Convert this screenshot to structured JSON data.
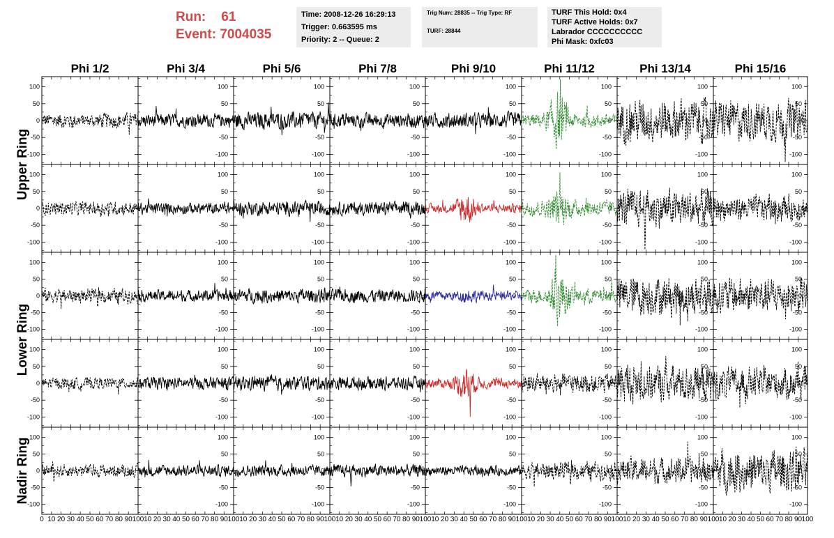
{
  "header": {
    "run_label": "Run:",
    "run_value": "61",
    "event_label": "Event:",
    "event_value": "7004035",
    "time_box": [
      "Time: 2008-12-26 16:29:13",
      "Trigger: 0.663595 ms",
      "Priority: 2 -- Queue: 2"
    ],
    "trig_box": [
      "Trig Num: 28835 -- Trig Type: RF",
      "TURF: 28844"
    ],
    "turf_box": [
      "TURF This Hold: 0x4",
      "TURF Active Holds: 0x7",
      "Labrador CCCCCCCCCC",
      "Phi Mask: 0xfc03"
    ],
    "run_color": "#d04a4a",
    "box_bg": "#ececec"
  },
  "chart_data": {
    "type": "line",
    "columns": [
      "Phi 1/2",
      "Phi 3/4",
      "Phi 5/6",
      "Phi 7/8",
      "Phi 9/10",
      "Phi 11/12",
      "Phi 13/14",
      "Phi 15/16"
    ],
    "rows": [
      "Upper Ring",
      "Lower Ring",
      "Nadir Ring"
    ],
    "xlim": [
      0,
      100
    ],
    "ylim": [
      -130,
      130
    ],
    "yticks": [
      -100,
      -50,
      0,
      50,
      100
    ],
    "xtick_labels": [
      "0",
      "10",
      "20",
      "30",
      "40",
      "50",
      "60",
      "70",
      "80",
      "90",
      "100"
    ],
    "colors": {
      "black": "#000000",
      "red": "#cc2a2a",
      "blue": "#2a2a9c",
      "green": "#2a8a2a"
    },
    "panels": [
      [
        {
          "color": "black",
          "dashed": true,
          "amp": 17,
          "burst": [
            45,
            0.8
          ]
        },
        {
          "color": "black",
          "dashed": false,
          "amp": 15
        },
        {
          "color": "black",
          "dashed": false,
          "amp": 19
        },
        {
          "color": "black",
          "dashed": false,
          "amp": 16
        },
        {
          "color": "black",
          "dashed": false,
          "amp": 17
        },
        {
          "color": "green",
          "dashed": true,
          "amp": 15,
          "burst": [
            38,
            4.5
          ]
        },
        {
          "color": "black",
          "dashed": true,
          "amp": 48
        },
        {
          "color": "black",
          "dashed": true,
          "amp": 45
        }
      ],
      [
        {
          "color": "black",
          "dashed": true,
          "amp": 15
        },
        {
          "color": "black",
          "dashed": false,
          "amp": 13
        },
        {
          "color": "black",
          "dashed": false,
          "amp": 16
        },
        {
          "color": "black",
          "dashed": false,
          "amp": 15
        },
        {
          "color": "red",
          "dashed": false,
          "amp": 10,
          "burst": [
            42,
            4.2
          ]
        },
        {
          "color": "green",
          "dashed": true,
          "amp": 18,
          "burst": [
            40,
            2.5
          ]
        },
        {
          "color": "black",
          "dashed": true,
          "amp": 42
        },
        {
          "color": "black",
          "dashed": true,
          "amp": 28
        }
      ],
      [
        {
          "color": "black",
          "dashed": true,
          "amp": 16
        },
        {
          "color": "black",
          "dashed": false,
          "amp": 13
        },
        {
          "color": "black",
          "dashed": false,
          "amp": 16
        },
        {
          "color": "black",
          "dashed": false,
          "amp": 15
        },
        {
          "color": "blue",
          "dashed": false,
          "amp": 11,
          "burst": [
            45,
            1.6
          ]
        },
        {
          "color": "green",
          "dashed": true,
          "amp": 16,
          "burst": [
            40,
            4.0
          ]
        },
        {
          "color": "black",
          "dashed": true,
          "amp": 45
        },
        {
          "color": "black",
          "dashed": true,
          "amp": 40
        }
      ],
      [
        {
          "color": "black",
          "dashed": true,
          "amp": 13
        },
        {
          "color": "black",
          "dashed": false,
          "amp": 14
        },
        {
          "color": "black",
          "dashed": false,
          "amp": 16
        },
        {
          "color": "black",
          "dashed": false,
          "amp": 15
        },
        {
          "color": "red",
          "dashed": false,
          "amp": 11,
          "burst": [
            42,
            4.0
          ]
        },
        {
          "color": "black",
          "dashed": true,
          "amp": 22
        },
        {
          "color": "black",
          "dashed": true,
          "amp": 42
        },
        {
          "color": "black",
          "dashed": true,
          "amp": 35
        }
      ],
      [
        {
          "color": "black",
          "dashed": true,
          "amp": 14
        },
        {
          "color": "black",
          "dashed": false,
          "amp": 13
        },
        {
          "color": "black",
          "dashed": false,
          "amp": 13
        },
        {
          "color": "black",
          "dashed": false,
          "amp": 14
        },
        {
          "color": "black",
          "dashed": false,
          "amp": 11
        },
        {
          "color": "black",
          "dashed": true,
          "amp": 20
        },
        {
          "color": "black",
          "dashed": true,
          "amp": 30
        },
        {
          "color": "black",
          "dashed": true,
          "amp": 48
        }
      ]
    ]
  }
}
